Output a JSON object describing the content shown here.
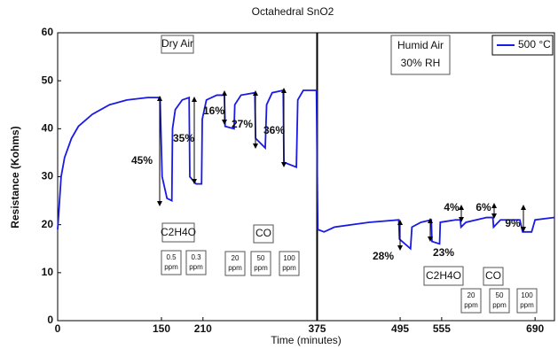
{
  "chart_data": {
    "type": "line",
    "title": "Octahedral SnO2",
    "x_label": "Time (minutes)",
    "y_label": "Resistance (Kohms)",
    "xlim": [
      0,
      718
    ],
    "xticks": [
      0,
      150,
      210,
      375,
      495,
      555,
      690
    ],
    "ylim": [
      0,
      60
    ],
    "yticks": [
      0,
      10,
      20,
      30,
      40,
      50,
      60
    ],
    "x": [
      0,
      5,
      10,
      20,
      30,
      50,
      75,
      100,
      130,
      148,
      151,
      158,
      165,
      166,
      170,
      180,
      190,
      191,
      200,
      208,
      209,
      215,
      230,
      241,
      242,
      255,
      256,
      265,
      285,
      286,
      300,
      302,
      310,
      326,
      327,
      345,
      347,
      355,
      374,
      376,
      385,
      400,
      450,
      493,
      494,
      510,
      512,
      525,
      540,
      541,
      552,
      553,
      575,
      582,
      583,
      590,
      620,
      629,
      630,
      640,
      668,
      672,
      685,
      690,
      718
    ],
    "series": [
      {
        "name": "500 °C",
        "color": "#1a1ae6",
        "values": [
          19,
          30,
          34,
          38,
          40.5,
          43,
          45,
          46,
          46.5,
          46.5,
          30,
          25.5,
          25,
          40,
          44,
          46,
          46.5,
          30,
          28.5,
          28.5,
          42,
          46,
          47,
          47,
          40.5,
          40,
          45,
          47,
          47.5,
          38,
          36,
          45,
          47.5,
          48,
          33,
          32,
          46,
          48,
          48,
          19,
          18.5,
          19.5,
          20.5,
          21,
          17,
          15,
          19.5,
          20.5,
          21,
          16.5,
          16,
          20.5,
          21,
          21,
          19.5,
          20.5,
          21.5,
          21.5,
          19.5,
          21,
          21,
          18.5,
          18.5,
          21,
          21.5
        ]
      }
    ],
    "divider_x": 375,
    "annotations": [
      "Dry Air",
      "Humid Air",
      "30% RH",
      "45%",
      "35%",
      "16%",
      "27%",
      "36%",
      "28%",
      "23%",
      "4%",
      "6%",
      "9%",
      "C2H4O",
      "CO",
      "C2H4O",
      "CO"
    ],
    "conc_boxes": [
      [
        "0.5",
        "ppm"
      ],
      [
        "0.3",
        "ppm"
      ],
      [
        "20",
        "ppm"
      ],
      [
        "50",
        "ppm"
      ],
      [
        "100",
        "ppm"
      ],
      [
        "20",
        "ppm"
      ],
      [
        "50",
        "ppm"
      ],
      [
        "100",
        "ppm"
      ]
    ],
    "legend": "upper right"
  }
}
